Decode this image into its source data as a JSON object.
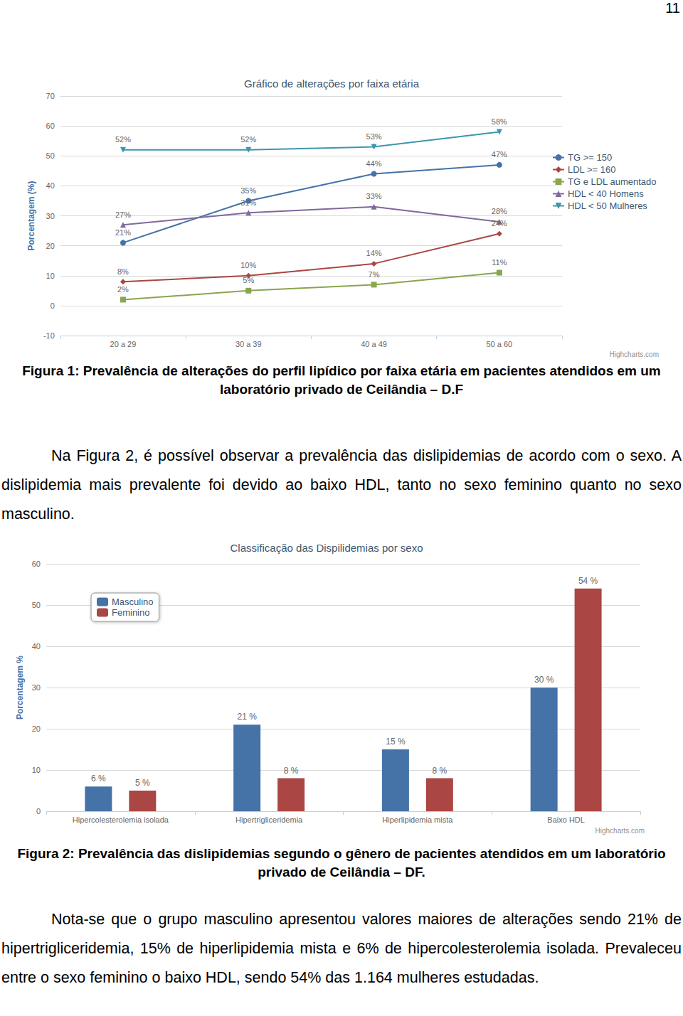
{
  "document": {
    "page_number": "11",
    "figure1_caption": "Figura 1: Prevalência de alterações do perfil lipídico por faixa etária em pacientes atendidos em um laboratório privado de Ceilândia – D.F",
    "paragraph1": "Na Figura 2, é possível observar a prevalência das dislipidemias de acordo com o sexo. A dislipidemia mais prevalente foi devido ao baixo HDL, tanto no sexo feminino quanto no sexo masculino.",
    "figure2_caption": "Figura 2: Prevalência das dislipidemias segundo o gênero de pacientes atendidos em um laboratório privado de Ceilândia – DF.",
    "paragraph2": "Nota-se que o grupo masculino apresentou valores maiores de alterações sendo 21% de hipertrigliceridemia, 15% de hiperlipidemia mista e 6% de hipercolesterolemia isolada. Prevaleceu entre o sexo feminino o baixo HDL, sendo 54% das 1.164 mulheres estudadas."
  },
  "chart_data": [
    {
      "type": "line",
      "title": "Gráfico de alterações por faixa etária",
      "y_label": "Porcentagem (%)",
      "categories": [
        "20 a 29",
        "30 a 39",
        "40 a 49",
        "50 a 60"
      ],
      "series": [
        {
          "name": "TG >= 150",
          "color": "#4572A7",
          "marker": "circle",
          "values": [
            21,
            35,
            44,
            47
          ],
          "value_labels": [
            "21%",
            "35%",
            "44%",
            "47%"
          ]
        },
        {
          "name": "LDL >= 160",
          "color": "#AA4643",
          "marker": "diamond",
          "values": [
            8,
            10,
            14,
            24
          ],
          "value_labels": [
            "8%",
            "10%",
            "14%",
            "24%"
          ]
        },
        {
          "name": "TG e LDL aumentado",
          "color": "#89A54E",
          "marker": "square",
          "values": [
            2,
            5,
            7,
            11
          ],
          "value_labels": [
            "2%",
            "5%",
            "7%",
            "11%"
          ]
        },
        {
          "name": "HDL < 40 Homens",
          "color": "#80699B",
          "marker": "triangle",
          "values": [
            27,
            31,
            33,
            28
          ],
          "value_labels": [
            "27%",
            "31%",
            "33%",
            "28%"
          ]
        },
        {
          "name": "HDL < 50 Mulheres",
          "color": "#3D96AE",
          "marker": "triangle-down",
          "values": [
            52,
            52,
            53,
            58
          ],
          "value_labels": [
            "52%",
            "52%",
            "53%",
            "58%"
          ]
        }
      ],
      "ylim": [
        -10,
        70
      ],
      "yticks": [
        -10,
        0,
        10,
        20,
        30,
        40,
        50,
        60,
        70
      ],
      "grid": true,
      "legend": "right",
      "data_labels": true,
      "annotations": [
        "Highcharts.com"
      ]
    },
    {
      "type": "bar",
      "title": "Classificação das Dispilidemias por sexo",
      "y_label": "Porcentagem %",
      "categories": [
        "Hipercolesterolemia isolada",
        "Hipertrigliceridemia",
        "Hiperlipidemia mista",
        "Baixo HDL"
      ],
      "series": [
        {
          "name": "Masculino",
          "color": "#4572A7",
          "values": [
            6,
            21,
            15,
            30
          ],
          "value_labels": [
            "6 %",
            "21 %",
            "15 %",
            "30 %"
          ]
        },
        {
          "name": "Feminino",
          "color": "#AA4643",
          "values": [
            5,
            8,
            8,
            54
          ],
          "value_labels": [
            "5 %",
            "8 %",
            "8 %",
            "54 %"
          ]
        }
      ],
      "ylim": [
        0,
        60
      ],
      "yticks": [
        0,
        10,
        20,
        30,
        40,
        50,
        60
      ],
      "grid": true,
      "legend": "top-left",
      "data_labels": true,
      "annotations": [
        "Highcharts.com"
      ]
    }
  ]
}
